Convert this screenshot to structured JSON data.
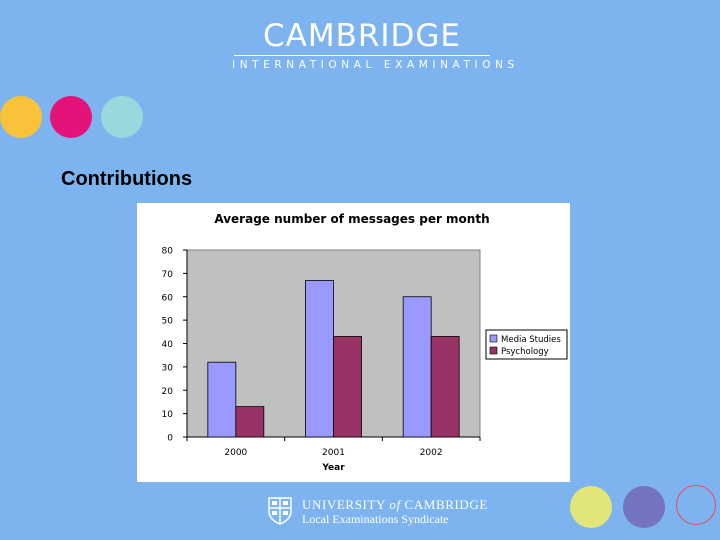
{
  "header": {
    "title": "CAMBRIDGE",
    "subtitle": "INTERNATIONAL EXAMINATIONS"
  },
  "slide": {
    "title": "Contributions"
  },
  "decor": {
    "dot_colors_top": [
      "#f8c23a",
      "#e3137a",
      "#9ad8de"
    ],
    "dot_colors_bottom": [
      "#e2e577",
      "#7474c0"
    ],
    "outline_dot_color": "#e64b5a"
  },
  "chart_data": {
    "type": "bar",
    "title": "Average number of messages per month",
    "xlabel": "Year",
    "ylabel": "",
    "categories": [
      "2000",
      "2001",
      "2002"
    ],
    "series": [
      {
        "name": "Media Studies",
        "values": [
          32,
          67,
          60
        ],
        "color": "#9999ff"
      },
      {
        "name": "Psychology",
        "values": [
          13,
          43,
          43
        ],
        "color": "#993366"
      }
    ],
    "ylim": [
      0,
      80
    ],
    "yticks": [
      "0",
      "10",
      "20",
      "30",
      "40",
      "50",
      "60",
      "70",
      "80"
    ],
    "grid": false,
    "plot_background": "#c0c0c0",
    "legend_position": "right"
  },
  "footer": {
    "line1_university": "UNIVERSITY",
    "line1_of": "of",
    "line1_cambridge": "CAMBRIDGE",
    "line2": "Local Examinations Syndicate"
  }
}
